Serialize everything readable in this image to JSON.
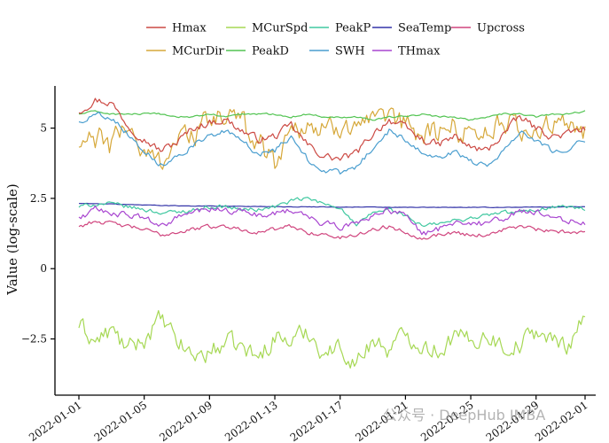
{
  "chart_data": {
    "type": "line",
    "title": "",
    "xlabel": "",
    "ylabel": "Value (log-scale)",
    "y_ticks": [
      -2.5,
      0,
      2.5,
      5
    ],
    "y_tick_labels": [
      "−2.5",
      "0",
      "2.5",
      "5"
    ],
    "ylim": [
      -4.5,
      6.5
    ],
    "x_ticks": [
      "2022-01-01",
      "2022-01-05",
      "2022-01-09",
      "2022-01-13",
      "2022-01-17",
      "2022-01-21",
      "2022-01-25",
      "2022-01-29",
      "2022-02-01"
    ],
    "xlim": [
      "2022-01-01",
      "2022-02-01"
    ],
    "grid": false,
    "legend_position": "top",
    "x": [
      "2022-01-01",
      "2022-01-02",
      "2022-01-03",
      "2022-01-04",
      "2022-01-05",
      "2022-01-06",
      "2022-01-07",
      "2022-01-08",
      "2022-01-09",
      "2022-01-10",
      "2022-01-11",
      "2022-01-12",
      "2022-01-13",
      "2022-01-14",
      "2022-01-15",
      "2022-01-16",
      "2022-01-17",
      "2022-01-18",
      "2022-01-19",
      "2022-01-20",
      "2022-01-21",
      "2022-01-22",
      "2022-01-23",
      "2022-01-24",
      "2022-01-25",
      "2022-01-26",
      "2022-01-27",
      "2022-01-28",
      "2022-01-29",
      "2022-01-30",
      "2022-01-31",
      "2022-02-01"
    ],
    "series": [
      {
        "name": "Hmax",
        "color": "#cc4a44",
        "noise": 0.22,
        "values": [
          5.6,
          6.0,
          5.9,
          5.1,
          4.6,
          4.2,
          4.5,
          5.0,
          5.2,
          5.3,
          4.9,
          4.6,
          4.7,
          5.1,
          4.4,
          4.0,
          3.9,
          4.1,
          4.8,
          5.3,
          5.0,
          4.6,
          4.4,
          4.7,
          4.3,
          4.2,
          4.8,
          5.4,
          5.0,
          4.7,
          4.8,
          5.0
        ]
      },
      {
        "name": "MCurSpd",
        "color": "#a6d854",
        "noise": 0.55,
        "values": [
          -2.0,
          -2.6,
          -2.2,
          -2.9,
          -2.5,
          -1.8,
          -2.6,
          -3.1,
          -3.0,
          -2.6,
          -2.8,
          -3.2,
          -2.4,
          -2.6,
          -2.2,
          -3.0,
          -2.8,
          -3.4,
          -2.5,
          -2.9,
          -2.3,
          -2.7,
          -2.9,
          -2.4,
          -2.6,
          -2.3,
          -2.8,
          -2.7,
          -2.2,
          -2.6,
          -2.7,
          -1.5
        ]
      },
      {
        "name": "PeakP",
        "color": "#40c8a0",
        "noise": 0.12,
        "values": [
          2.2,
          2.3,
          2.3,
          2.2,
          2.1,
          2.0,
          2.0,
          2.1,
          2.2,
          2.2,
          2.1,
          2.1,
          2.2,
          2.4,
          2.5,
          2.3,
          2.2,
          1.5,
          2.0,
          2.1,
          1.9,
          1.5,
          1.6,
          1.7,
          1.8,
          1.9,
          2.0,
          2.0,
          2.1,
          2.2,
          2.2,
          2.1
        ]
      },
      {
        "name": "SeaTemp",
        "color": "#3333a8",
        "noise": 0.015,
        "values": [
          2.32,
          2.31,
          2.3,
          2.28,
          2.27,
          2.25,
          2.24,
          2.23,
          2.23,
          2.22,
          2.22,
          2.21,
          2.21,
          2.2,
          2.2,
          2.2,
          2.19,
          2.19,
          2.19,
          2.18,
          2.18,
          2.18,
          2.18,
          2.18,
          2.18,
          2.18,
          2.18,
          2.19,
          2.19,
          2.19,
          2.2,
          2.2
        ]
      },
      {
        "name": "Upcross",
        "color": "#d0457e",
        "noise": 0.12,
        "values": [
          1.5,
          1.7,
          1.6,
          1.5,
          1.4,
          1.2,
          1.3,
          1.4,
          1.5,
          1.5,
          1.4,
          1.3,
          1.4,
          1.5,
          1.3,
          1.2,
          1.1,
          1.2,
          1.4,
          1.5,
          1.3,
          1.1,
          1.2,
          1.3,
          1.2,
          1.2,
          1.4,
          1.5,
          1.4,
          1.3,
          1.3,
          1.3
        ]
      },
      {
        "name": "MCurDir",
        "color": "#d6a83a",
        "noise": 0.75,
        "values": [
          4.3,
          4.6,
          4.4,
          5.2,
          4.0,
          3.9,
          4.6,
          4.8,
          5.2,
          5.5,
          5.1,
          4.6,
          3.8,
          5.0,
          5.2,
          4.8,
          5.1,
          5.4,
          5.0,
          5.2,
          5.1,
          4.8,
          4.9,
          5.0,
          4.9,
          5.0,
          5.1,
          5.0,
          4.9,
          5.1,
          4.9,
          5.0
        ]
      },
      {
        "name": "PeakD",
        "color": "#52c452",
        "noise": 0.05,
        "values": [
          5.5,
          5.6,
          5.5,
          5.5,
          5.5,
          5.5,
          5.4,
          5.4,
          5.5,
          5.4,
          5.5,
          5.5,
          5.5,
          5.4,
          5.5,
          5.4,
          5.4,
          5.4,
          5.3,
          5.4,
          5.4,
          5.5,
          5.4,
          5.4,
          5.3,
          5.4,
          5.5,
          5.5,
          5.4,
          5.5,
          5.5,
          5.6
        ]
      },
      {
        "name": "SWH",
        "color": "#4a9ecf",
        "noise": 0.16,
        "values": [
          5.2,
          5.5,
          5.4,
          4.8,
          4.2,
          3.7,
          4.0,
          4.4,
          4.7,
          4.9,
          4.5,
          4.1,
          4.2,
          4.7,
          3.9,
          3.5,
          3.4,
          3.6,
          4.3,
          4.9,
          4.6,
          4.2,
          3.9,
          4.2,
          3.8,
          3.7,
          4.2,
          4.9,
          4.6,
          4.2,
          4.3,
          4.6
        ]
      },
      {
        "name": "THmax",
        "color": "#a845d0",
        "noise": 0.18,
        "values": [
          1.8,
          2.1,
          2.0,
          1.9,
          1.8,
          1.5,
          1.8,
          2.0,
          2.1,
          2.1,
          2.0,
          1.9,
          2.0,
          2.1,
          1.8,
          1.6,
          1.5,
          1.6,
          1.9,
          2.1,
          1.9,
          1.2,
          1.4,
          1.7,
          1.6,
          1.6,
          1.8,
          2.0,
          2.0,
          1.8,
          1.7,
          1.6
        ]
      }
    ]
  },
  "watermark": {
    "text": "公众号 · DeepHub IMBA"
  }
}
